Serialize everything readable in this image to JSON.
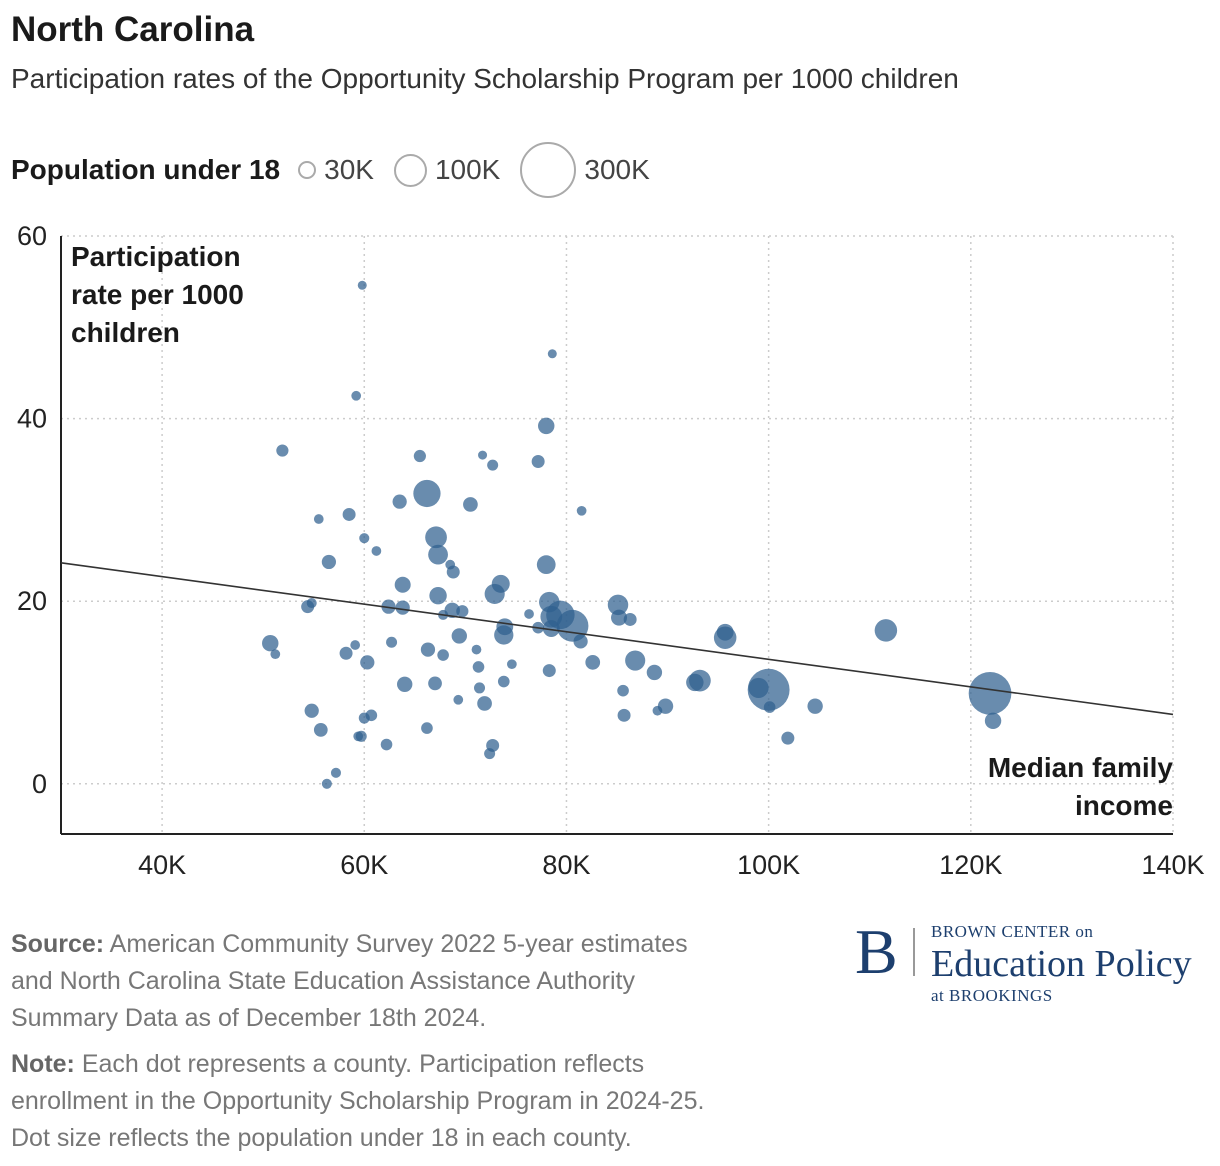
{
  "title": "North Carolina",
  "subtitle": "Participation rates of the Opportunity Scholarship Program per 1000 children",
  "legend": {
    "title": "Population under 18",
    "items": [
      {
        "label": "30K",
        "value": 30000
      },
      {
        "label": "100K",
        "value": 100000
      },
      {
        "label": "300K",
        "value": 300000
      }
    ]
  },
  "colors": {
    "dot": "#2f5f8f",
    "line": "#333333",
    "grid": "#cccccc",
    "brand": "#1d3f6e"
  },
  "chart_data": {
    "type": "scatter",
    "xlabel": "Median family income",
    "ylabel": "Participation rate per 1000 children",
    "xlabel_lines": [
      "Median family",
      "income"
    ],
    "ylabel_lines": [
      "Participation",
      "rate per 1000",
      "children"
    ],
    "xlim": [
      30000,
      140000
    ],
    "ylim": [
      -5.5,
      60
    ],
    "xticks": [
      40000,
      60000,
      80000,
      100000,
      120000,
      140000
    ],
    "xtick_labels": [
      "40K",
      "60K",
      "80K",
      "100K",
      "120K",
      "140K"
    ],
    "yticks": [
      0,
      20,
      40,
      60
    ],
    "ytick_labels": [
      "0",
      "20",
      "40",
      "60"
    ],
    "grid": true,
    "trendline": {
      "x": [
        30000,
        140000
      ],
      "y": [
        24.2,
        7.6
      ]
    },
    "points": [
      {
        "x": 59800,
        "y": 54.6,
        "pop": 12000
      },
      {
        "x": 78600,
        "y": 47.1,
        "pop": 12000
      },
      {
        "x": 59200,
        "y": 42.5,
        "pop": 14000
      },
      {
        "x": 78000,
        "y": 39.2,
        "pop": 40000
      },
      {
        "x": 51900,
        "y": 36.5,
        "pop": 22000
      },
      {
        "x": 65500,
        "y": 35.9,
        "pop": 22000
      },
      {
        "x": 71700,
        "y": 36.0,
        "pop": 12000
      },
      {
        "x": 72700,
        "y": 34.9,
        "pop": 18000
      },
      {
        "x": 77200,
        "y": 35.3,
        "pop": 25000
      },
      {
        "x": 66200,
        "y": 31.8,
        "pop": 110000
      },
      {
        "x": 63500,
        "y": 30.9,
        "pop": 30000
      },
      {
        "x": 70500,
        "y": 30.6,
        "pop": 32000
      },
      {
        "x": 81500,
        "y": 29.9,
        "pop": 14000
      },
      {
        "x": 58500,
        "y": 29.5,
        "pop": 25000
      },
      {
        "x": 55500,
        "y": 29.0,
        "pop": 14000
      },
      {
        "x": 60000,
        "y": 26.9,
        "pop": 15000
      },
      {
        "x": 67100,
        "y": 27.0,
        "pop": 70000
      },
      {
        "x": 61200,
        "y": 25.5,
        "pop": 14000
      },
      {
        "x": 67300,
        "y": 25.1,
        "pop": 58000
      },
      {
        "x": 56500,
        "y": 24.3,
        "pop": 30000
      },
      {
        "x": 68500,
        "y": 24.0,
        "pop": 14000
      },
      {
        "x": 78000,
        "y": 24.0,
        "pop": 52000
      },
      {
        "x": 68800,
        "y": 23.2,
        "pop": 25000
      },
      {
        "x": 63800,
        "y": 21.8,
        "pop": 38000
      },
      {
        "x": 73500,
        "y": 21.9,
        "pop": 48000
      },
      {
        "x": 72900,
        "y": 20.8,
        "pop": 60000
      },
      {
        "x": 67300,
        "y": 20.6,
        "pop": 45000
      },
      {
        "x": 78300,
        "y": 19.9,
        "pop": 62000
      },
      {
        "x": 85100,
        "y": 19.6,
        "pop": 62000
      },
      {
        "x": 54800,
        "y": 19.8,
        "pop": 15000
      },
      {
        "x": 54400,
        "y": 19.4,
        "pop": 25000
      },
      {
        "x": 62400,
        "y": 19.4,
        "pop": 30000
      },
      {
        "x": 63800,
        "y": 19.3,
        "pop": 30000
      },
      {
        "x": 68700,
        "y": 19.0,
        "pop": 35000
      },
      {
        "x": 69700,
        "y": 18.9,
        "pop": 22000
      },
      {
        "x": 67800,
        "y": 18.5,
        "pop": 15000
      },
      {
        "x": 76300,
        "y": 18.6,
        "pop": 14000
      },
      {
        "x": 78500,
        "y": 18.3,
        "pop": 70000
      },
      {
        "x": 79400,
        "y": 18.5,
        "pop": 120000
      },
      {
        "x": 85200,
        "y": 18.2,
        "pop": 38000
      },
      {
        "x": 86300,
        "y": 18.0,
        "pop": 25000
      },
      {
        "x": 80600,
        "y": 17.3,
        "pop": 150000
      },
      {
        "x": 73900,
        "y": 17.2,
        "pop": 42000
      },
      {
        "x": 77200,
        "y": 17.1,
        "pop": 20000
      },
      {
        "x": 78500,
        "y": 17.0,
        "pop": 42000
      },
      {
        "x": 95700,
        "y": 16.6,
        "pop": 42000
      },
      {
        "x": 111600,
        "y": 16.8,
        "pop": 75000
      },
      {
        "x": 95700,
        "y": 16.0,
        "pop": 75000
      },
      {
        "x": 73800,
        "y": 16.3,
        "pop": 55000
      },
      {
        "x": 69400,
        "y": 16.2,
        "pop": 35000
      },
      {
        "x": 81400,
        "y": 15.6,
        "pop": 30000
      },
      {
        "x": 50700,
        "y": 15.4,
        "pop": 40000
      },
      {
        "x": 62700,
        "y": 15.5,
        "pop": 18000
      },
      {
        "x": 59100,
        "y": 15.2,
        "pop": 14000
      },
      {
        "x": 66300,
        "y": 14.7,
        "pop": 30000
      },
      {
        "x": 51200,
        "y": 14.2,
        "pop": 14000
      },
      {
        "x": 58200,
        "y": 14.3,
        "pop": 25000
      },
      {
        "x": 67800,
        "y": 14.1,
        "pop": 20000
      },
      {
        "x": 71100,
        "y": 14.7,
        "pop": 14000
      },
      {
        "x": 60300,
        "y": 13.3,
        "pop": 30000
      },
      {
        "x": 74600,
        "y": 13.1,
        "pop": 14000
      },
      {
        "x": 82600,
        "y": 13.3,
        "pop": 32000
      },
      {
        "x": 86800,
        "y": 13.5,
        "pop": 60000
      },
      {
        "x": 71300,
        "y": 12.8,
        "pop": 20000
      },
      {
        "x": 78300,
        "y": 12.4,
        "pop": 25000
      },
      {
        "x": 88700,
        "y": 12.2,
        "pop": 35000
      },
      {
        "x": 93200,
        "y": 11.3,
        "pop": 70000
      },
      {
        "x": 92700,
        "y": 11.1,
        "pop": 45000
      },
      {
        "x": 73800,
        "y": 11.2,
        "pop": 20000
      },
      {
        "x": 64000,
        "y": 10.9,
        "pop": 35000
      },
      {
        "x": 67000,
        "y": 11.0,
        "pop": 28000
      },
      {
        "x": 71400,
        "y": 10.5,
        "pop": 18000
      },
      {
        "x": 85600,
        "y": 10.2,
        "pop": 20000
      },
      {
        "x": 69300,
        "y": 9.2,
        "pop": 14000
      },
      {
        "x": 99000,
        "y": 10.5,
        "pop": 60000
      },
      {
        "x": 100000,
        "y": 10.3,
        "pop": 260000
      },
      {
        "x": 121900,
        "y": 9.9,
        "pop": 270000
      },
      {
        "x": 71900,
        "y": 8.8,
        "pop": 32000
      },
      {
        "x": 89800,
        "y": 8.5,
        "pop": 35000
      },
      {
        "x": 100100,
        "y": 8.4,
        "pop": 20000
      },
      {
        "x": 104600,
        "y": 8.5,
        "pop": 35000
      },
      {
        "x": 89000,
        "y": 8.0,
        "pop": 14000
      },
      {
        "x": 54800,
        "y": 8.0,
        "pop": 30000
      },
      {
        "x": 85700,
        "y": 7.5,
        "pop": 25000
      },
      {
        "x": 60700,
        "y": 7.5,
        "pop": 20000
      },
      {
        "x": 60000,
        "y": 7.2,
        "pop": 18000
      },
      {
        "x": 122200,
        "y": 6.9,
        "pop": 40000
      },
      {
        "x": 66200,
        "y": 6.1,
        "pop": 20000
      },
      {
        "x": 55700,
        "y": 5.9,
        "pop": 28000
      },
      {
        "x": 59400,
        "y": 5.2,
        "pop": 14000
      },
      {
        "x": 59700,
        "y": 5.2,
        "pop": 18000
      },
      {
        "x": 101900,
        "y": 5.0,
        "pop": 25000
      },
      {
        "x": 62200,
        "y": 4.3,
        "pop": 20000
      },
      {
        "x": 72700,
        "y": 4.2,
        "pop": 25000
      },
      {
        "x": 72400,
        "y": 3.3,
        "pop": 18000
      },
      {
        "x": 57200,
        "y": 1.2,
        "pop": 15000
      },
      {
        "x": 56300,
        "y": 0.0,
        "pop": 15000
      }
    ]
  },
  "footer": {
    "source_label": "Source:",
    "source_line1": "American Community Survey 2022 5-year estimates",
    "source_line2": "and North Carolina State Education Assistance Authority",
    "source_line3": "Summary Data as of December 18th 2024.",
    "note_label": "Note:",
    "note_line1": "Each dot represents a county. Participation reflects",
    "note_line2": "enrollment in the Opportunity Scholarship Program in 2024-25.",
    "note_line3": "Dot size reflects the population under 18 in each county."
  },
  "logo": {
    "letter": "B",
    "line1": "BROWN CENTER on",
    "line2": "Education Policy",
    "line3": "at BROOKINGS"
  }
}
